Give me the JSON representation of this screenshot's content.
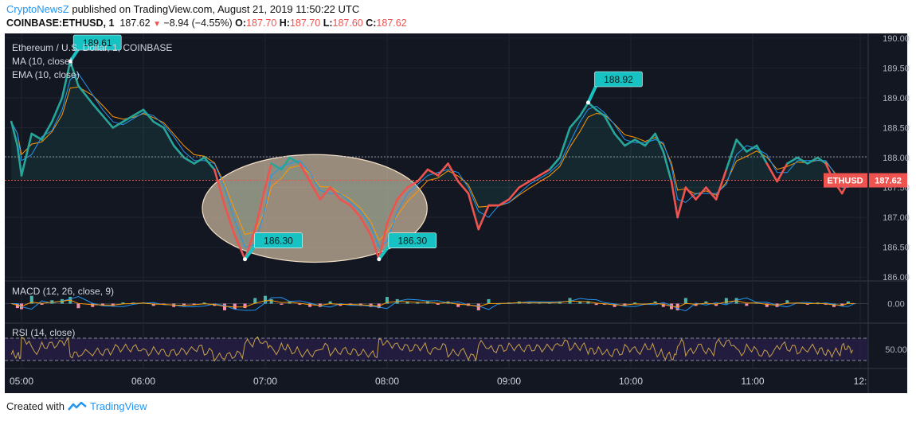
{
  "header": {
    "author": "CryptoNewsZ",
    "published": " published on TradingView.com, August 21, 2019 11:50:22 UTC",
    "symbol": "COINBASE:ETHUSD, 1",
    "last": "187.62",
    "change": "−8.94 (−4.55%)",
    "o_label": "O:",
    "o": "187.70",
    "h_label": "H:",
    "h": "187.70",
    "l_label": "L:",
    "l": "187.60",
    "c_label": "C:",
    "c": "187.62"
  },
  "footer": {
    "created_with": "Created with",
    "brand": "TradingView"
  },
  "colors": {
    "background": "#131722",
    "up": "#26a69a",
    "down": "#ef5350",
    "ma": "#2196f3",
    "ema": "#ff9800",
    "callout": "#17c2c2",
    "rsi": "#c8a24a",
    "rsi_band": "#2a1f4a"
  },
  "chart_data": {
    "type": "line",
    "title": "Ethereum / U.S. Dollar, 1, COINBASE",
    "indicators": [
      "MA (10, close)",
      "EMA (10, close)"
    ],
    "symbol_tag": "ETHUSD",
    "last_price": 187.62,
    "y_ticks": [
      "190.00",
      "189.50",
      "189.00",
      "188.50",
      "188.00",
      "187.62",
      "187.50",
      "187.00",
      "186.50",
      "186.00"
    ],
    "ylim": [
      185.95,
      190.05
    ],
    "x_ticks": [
      "05:00",
      "06:00",
      "07:00",
      "08:00",
      "09:00",
      "10:00",
      "11:00",
      "12:"
    ],
    "price_path": [
      [
        "04:55",
        188.6
      ],
      [
        "04:58",
        188.2
      ],
      [
        "05:00",
        187.7
      ],
      [
        "05:05",
        188.4
      ],
      [
        "05:10",
        188.3
      ],
      [
        "05:15",
        188.6
      ],
      [
        "05:20",
        189.0
      ],
      [
        "05:24",
        189.61
      ],
      [
        "05:28",
        189.2
      ],
      [
        "05:35",
        188.9
      ],
      [
        "05:40",
        188.7
      ],
      [
        "05:45",
        188.5
      ],
      [
        "05:50",
        188.6
      ],
      [
        "05:55",
        188.7
      ],
      [
        "06:00",
        188.8
      ],
      [
        "06:05",
        188.6
      ],
      [
        "06:10",
        188.5
      ],
      [
        "06:15",
        188.2
      ],
      [
        "06:20",
        188.0
      ],
      [
        "06:25",
        187.9
      ],
      [
        "06:30",
        188.0
      ],
      [
        "06:35",
        187.8
      ],
      [
        "06:40",
        187.2
      ],
      [
        "06:45",
        186.7
      ],
      [
        "06:50",
        186.3
      ],
      [
        "06:55",
        186.8
      ],
      [
        "07:00",
        187.5
      ],
      [
        "07:03",
        187.9
      ],
      [
        "07:08",
        187.8
      ],
      [
        "07:12",
        188.0
      ],
      [
        "07:17",
        187.9
      ],
      [
        "07:22",
        187.6
      ],
      [
        "07:27",
        187.3
      ],
      [
        "07:32",
        187.5
      ],
      [
        "07:37",
        187.3
      ],
      [
        "07:42",
        187.2
      ],
      [
        "07:47",
        187.0
      ],
      [
        "07:52",
        186.7
      ],
      [
        "07:56",
        186.3
      ],
      [
        "08:00",
        186.9
      ],
      [
        "08:05",
        187.3
      ],
      [
        "08:10",
        187.5
      ],
      [
        "08:15",
        187.6
      ],
      [
        "08:20",
        187.8
      ],
      [
        "08:25",
        187.7
      ],
      [
        "08:30",
        187.9
      ],
      [
        "08:35",
        187.6
      ],
      [
        "08:40",
        187.4
      ],
      [
        "08:45",
        186.8
      ],
      [
        "08:50",
        187.2
      ],
      [
        "08:55",
        187.2
      ],
      [
        "09:00",
        187.3
      ],
      [
        "09:05",
        187.5
      ],
      [
        "09:10",
        187.6
      ],
      [
        "09:15",
        187.7
      ],
      [
        "09:20",
        187.8
      ],
      [
        "09:25",
        188.0
      ],
      [
        "09:30",
        188.5
      ],
      [
        "09:35",
        188.7
      ],
      [
        "09:39",
        188.92
      ],
      [
        "09:43",
        188.8
      ],
      [
        "09:47",
        188.7
      ],
      [
        "09:52",
        188.4
      ],
      [
        "09:57",
        188.2
      ],
      [
        "10:02",
        188.3
      ],
      [
        "10:07",
        188.2
      ],
      [
        "10:12",
        188.4
      ],
      [
        "10:16",
        188.1
      ],
      [
        "10:20",
        187.6
      ],
      [
        "10:23",
        187.0
      ],
      [
        "10:27",
        187.5
      ],
      [
        "10:32",
        187.3
      ],
      [
        "10:37",
        187.5
      ],
      [
        "10:42",
        187.3
      ],
      [
        "10:47",
        187.8
      ],
      [
        "10:52",
        188.3
      ],
      [
        "10:57",
        188.1
      ],
      [
        "11:02",
        188.2
      ],
      [
        "11:07",
        187.9
      ],
      [
        "11:12",
        187.6
      ],
      [
        "11:17",
        187.9
      ],
      [
        "11:22",
        188.0
      ],
      [
        "11:27",
        187.9
      ],
      [
        "11:32",
        188.0
      ],
      [
        "11:36",
        187.9
      ],
      [
        "11:40",
        187.6
      ],
      [
        "11:44",
        187.4
      ],
      [
        "11:47",
        187.6
      ],
      [
        "11:50",
        187.62
      ]
    ],
    "callouts": [
      {
        "label": "189.61",
        "time": "05:24",
        "value": 189.61
      },
      {
        "label": "186.30",
        "time": "06:50",
        "value": 186.3
      },
      {
        "label": "186.30",
        "time": "07:56",
        "value": 186.3
      },
      {
        "label": "188.92",
        "time": "09:39",
        "value": 188.92
      }
    ],
    "highlight_region": {
      "from": "06:40",
      "to": "08:15",
      "low": 186.25,
      "high": 188.05
    },
    "macd": {
      "label": "MACD (12, 26, close, 9)",
      "tick": "0.00"
    },
    "rsi": {
      "label": "RSI (14, close)",
      "tick": "50.00",
      "upper": 70,
      "lower": 30
    }
  }
}
